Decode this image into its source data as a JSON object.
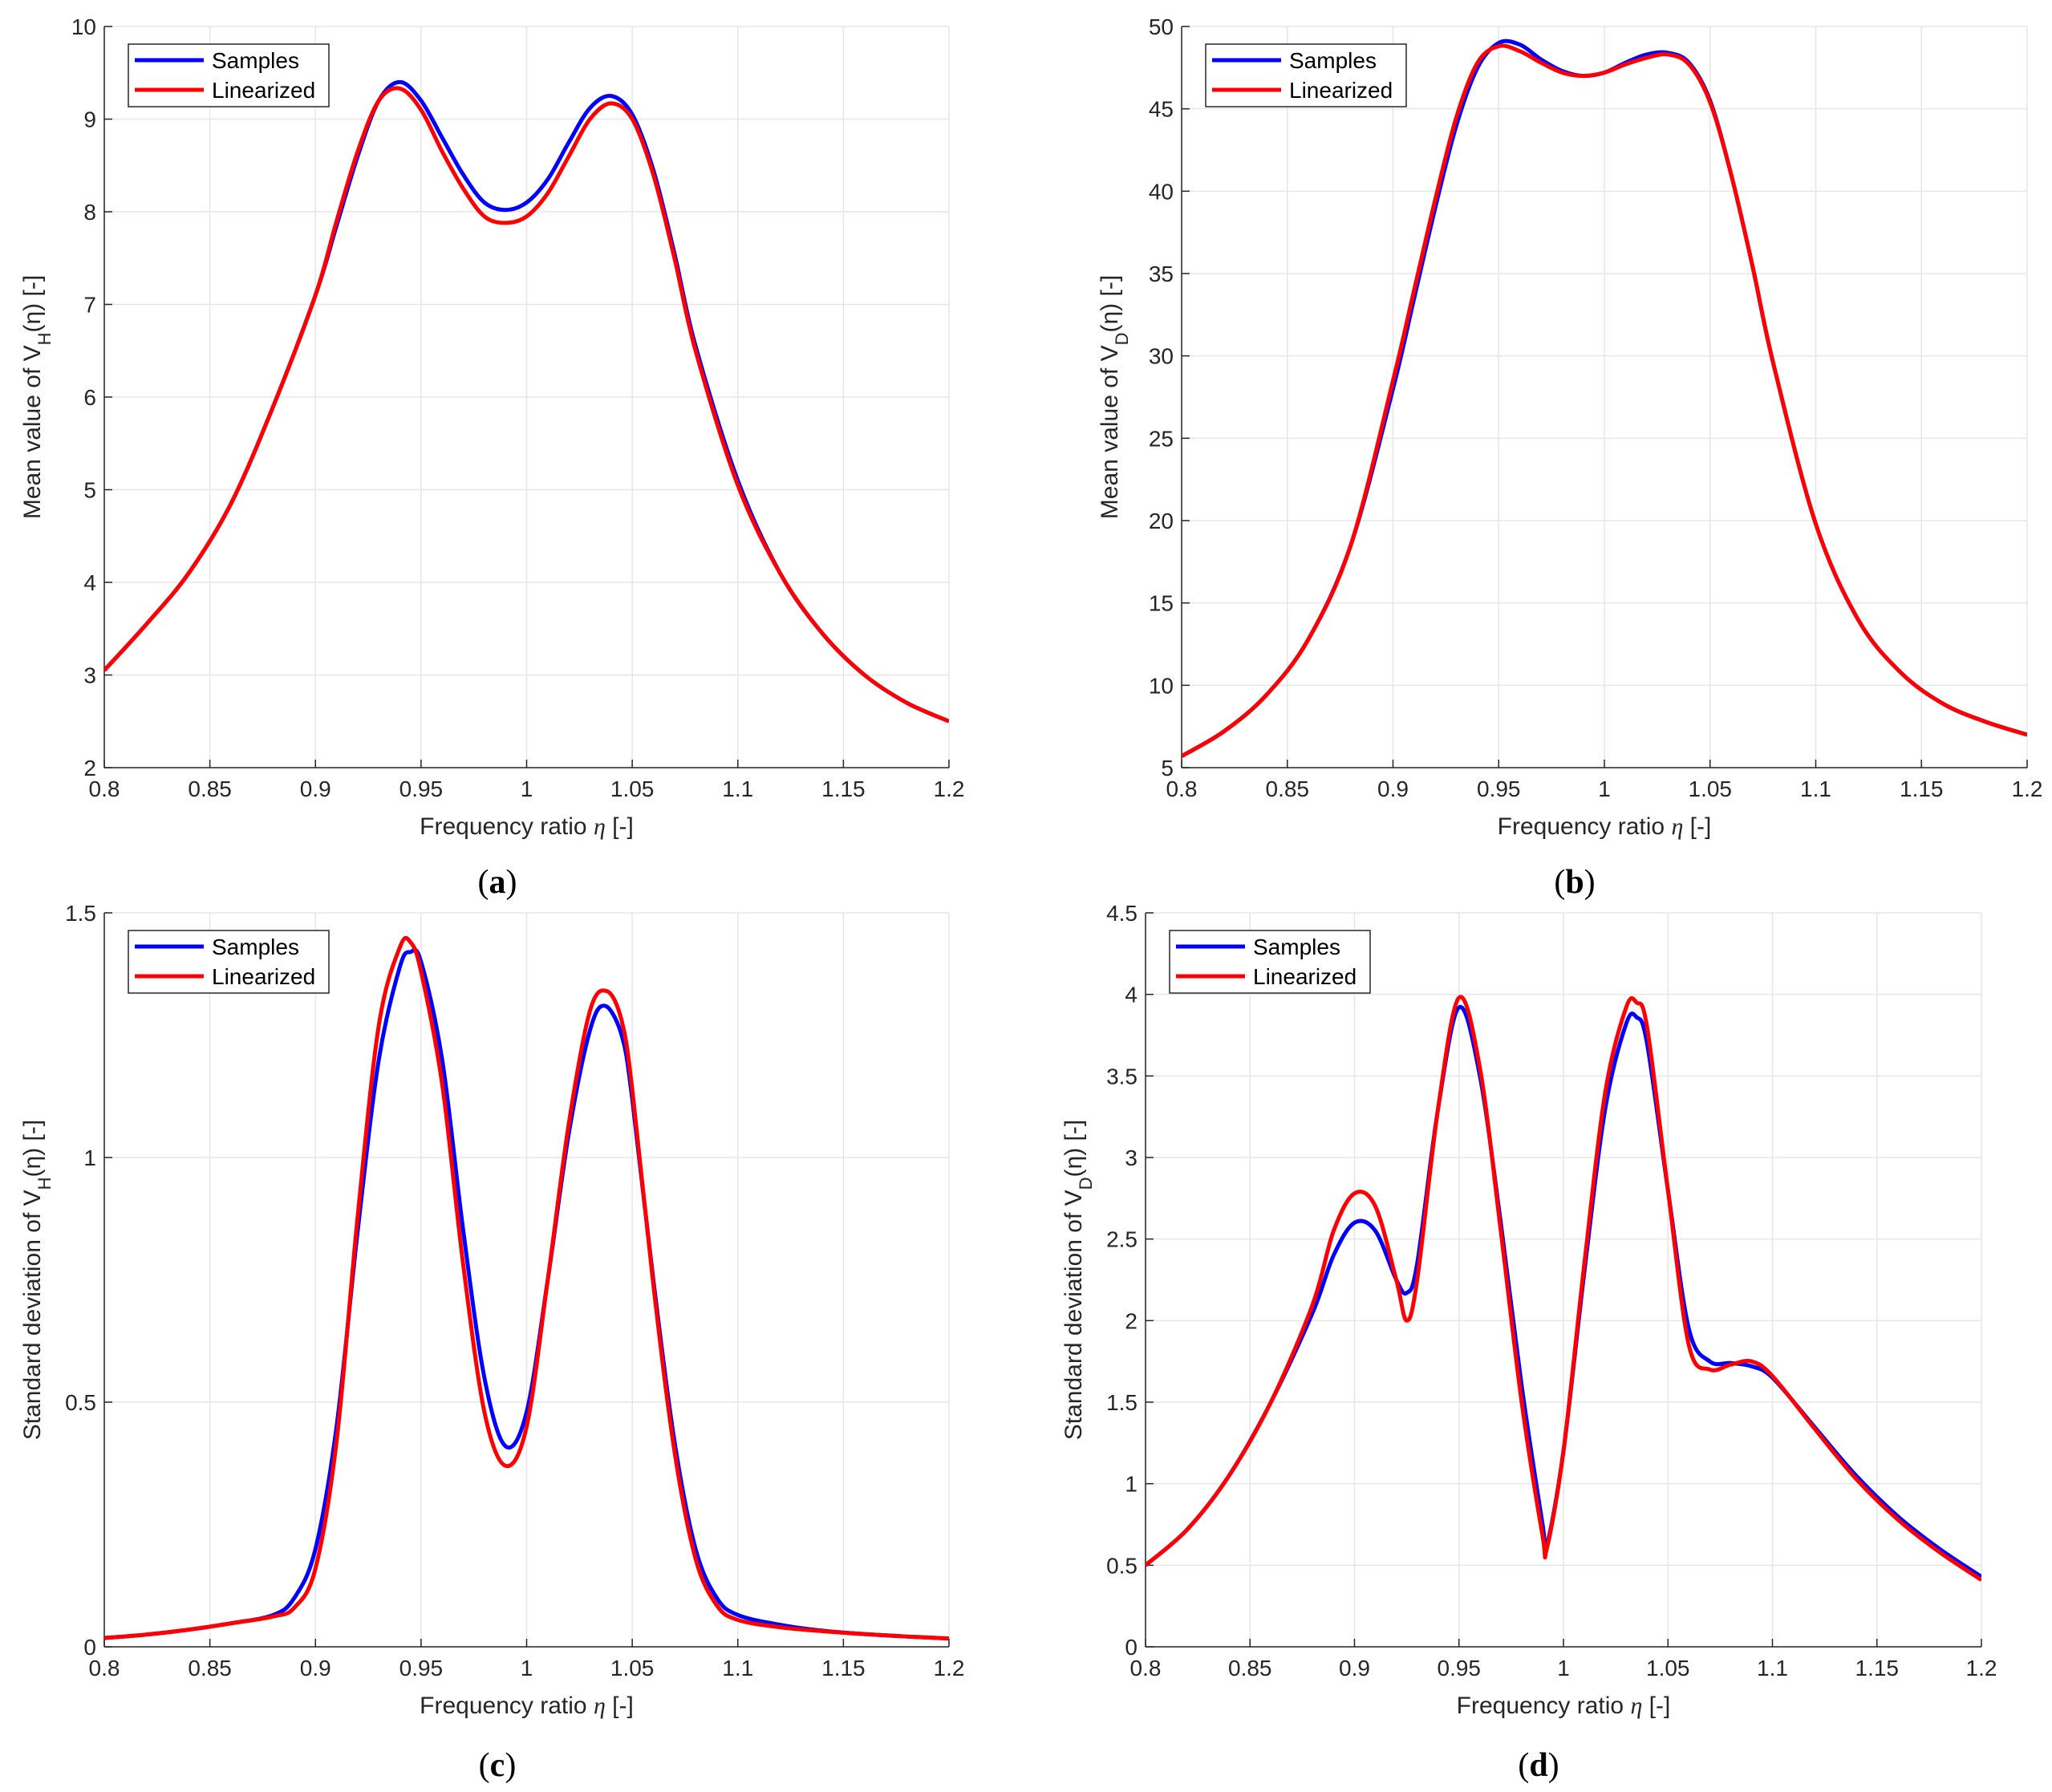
{
  "colors": {
    "samples": "#0000ff",
    "linearized": "#ff0000",
    "grid": "#e6e6e6",
    "axis": "#262626"
  },
  "legend": {
    "samples": "Samples",
    "linearized": "Linearized"
  },
  "chart_data": [
    {
      "id": "a",
      "type": "line",
      "caption": "a",
      "xlabel": "Frequency ratio",
      "xsym": "η",
      "xunit": "[-]",
      "ylabel_pre": "Mean value of V",
      "ylabel_sub": "H",
      "ylabel_post": "(η) [-]",
      "xlim": [
        0.8,
        1.2
      ],
      "ylim": [
        2,
        10
      ],
      "xticks": [
        0.8,
        0.85,
        0.9,
        0.95,
        1,
        1.05,
        1.1,
        1.15,
        1.2
      ],
      "xtick_labels": [
        "0.8",
        "0.85",
        "0.9",
        "0.95",
        "1",
        "1.05",
        "1.1",
        "1.15",
        "1.2"
      ],
      "yticks": [
        2,
        3,
        4,
        5,
        6,
        7,
        8,
        9,
        10
      ],
      "ytick_labels": [
        "2",
        "3",
        "4",
        "5",
        "6",
        "7",
        "8",
        "9",
        "10"
      ],
      "legend_position": "top-left",
      "series": [
        {
          "name": "Samples",
          "x": [
            0.8,
            0.82,
            0.84,
            0.86,
            0.88,
            0.9,
            0.91,
            0.92,
            0.93,
            0.94,
            0.95,
            0.96,
            0.97,
            0.98,
            0.99,
            1.0,
            1.01,
            1.02,
            1.03,
            1.04,
            1.05,
            1.06,
            1.07,
            1.08,
            1.1,
            1.12,
            1.14,
            1.16,
            1.18,
            1.2
          ],
          "y": [
            3.05,
            3.55,
            4.1,
            4.85,
            5.9,
            7.1,
            7.85,
            8.6,
            9.2,
            9.4,
            9.2,
            8.8,
            8.4,
            8.1,
            8.02,
            8.1,
            8.35,
            8.75,
            9.12,
            9.25,
            9.05,
            8.45,
            7.55,
            6.55,
            5.1,
            4.1,
            3.45,
            3.0,
            2.7,
            2.5
          ]
        },
        {
          "name": "Linearized",
          "x": [
            0.8,
            0.82,
            0.84,
            0.86,
            0.88,
            0.9,
            0.91,
            0.92,
            0.93,
            0.94,
            0.95,
            0.96,
            0.97,
            0.98,
            0.99,
            1.0,
            1.01,
            1.02,
            1.03,
            1.04,
            1.05,
            1.06,
            1.07,
            1.08,
            1.1,
            1.12,
            1.14,
            1.16,
            1.18,
            1.2
          ],
          "y": [
            3.05,
            3.55,
            4.1,
            4.85,
            5.9,
            7.1,
            7.9,
            8.65,
            9.2,
            9.33,
            9.1,
            8.65,
            8.25,
            7.95,
            7.88,
            7.95,
            8.2,
            8.6,
            9.0,
            9.17,
            9.0,
            8.4,
            7.5,
            6.5,
            5.05,
            4.1,
            3.45,
            3.0,
            2.7,
            2.5
          ]
        }
      ]
    },
    {
      "id": "b",
      "type": "line",
      "caption": "b",
      "xlabel": "Frequency ratio",
      "xsym": "η",
      "xunit": "[-]",
      "ylabel_pre": "Mean value of V",
      "ylabel_sub": "D",
      "ylabel_post": "(η) [-]",
      "xlim": [
        0.8,
        1.2
      ],
      "ylim": [
        5,
        50
      ],
      "xticks": [
        0.8,
        0.85,
        0.9,
        0.95,
        1,
        1.05,
        1.1,
        1.15,
        1.2
      ],
      "xtick_labels": [
        "0.8",
        "0.85",
        "0.9",
        "0.95",
        "1",
        "1.05",
        "1.1",
        "1.15",
        "1.2"
      ],
      "yticks": [
        5,
        10,
        15,
        20,
        25,
        30,
        35,
        40,
        45,
        50
      ],
      "ytick_labels": [
        "5",
        "10",
        "15",
        "20",
        "25",
        "30",
        "35",
        "40",
        "45",
        "50"
      ],
      "legend_position": "top-left",
      "series": [
        {
          "name": "Samples",
          "x": [
            0.8,
            0.82,
            0.84,
            0.86,
            0.88,
            0.9,
            0.91,
            0.92,
            0.93,
            0.94,
            0.95,
            0.96,
            0.97,
            0.98,
            0.99,
            1.0,
            1.01,
            1.02,
            1.03,
            1.04,
            1.05,
            1.06,
            1.07,
            1.08,
            1.1,
            1.12,
            1.14,
            1.16,
            1.18,
            1.2
          ],
          "y": [
            5.7,
            7.2,
            9.4,
            12.8,
            18.5,
            28.0,
            33.5,
            39.0,
            44.0,
            47.5,
            49.0,
            48.9,
            48.0,
            47.3,
            47.0,
            47.2,
            47.8,
            48.3,
            48.4,
            47.8,
            45.5,
            41.0,
            35.5,
            29.5,
            19.8,
            14.0,
            10.8,
            8.9,
            7.8,
            7.0
          ]
        },
        {
          "name": "Linearized",
          "x": [
            0.8,
            0.82,
            0.84,
            0.86,
            0.88,
            0.9,
            0.91,
            0.92,
            0.93,
            0.94,
            0.95,
            0.96,
            0.97,
            0.98,
            0.99,
            1.0,
            1.01,
            1.02,
            1.03,
            1.04,
            1.05,
            1.06,
            1.07,
            1.08,
            1.1,
            1.12,
            1.14,
            1.16,
            1.18,
            1.2
          ],
          "y": [
            5.7,
            7.2,
            9.4,
            12.8,
            18.5,
            28.5,
            34.0,
            39.5,
            44.5,
            47.8,
            48.8,
            48.5,
            47.8,
            47.2,
            47.0,
            47.2,
            47.7,
            48.1,
            48.3,
            47.7,
            45.4,
            41.0,
            35.5,
            29.5,
            19.8,
            14.0,
            10.8,
            8.9,
            7.8,
            7.0
          ]
        }
      ]
    },
    {
      "id": "c",
      "type": "line",
      "caption": "c",
      "xlabel": "Frequency ratio",
      "xsym": "η",
      "xunit": "[-]",
      "ylabel_pre": "Standard deviation of V",
      "ylabel_sub": "H",
      "ylabel_post": "(η) [-]",
      "xlim": [
        0.8,
        1.2
      ],
      "ylim": [
        0,
        1.5
      ],
      "xticks": [
        0.8,
        0.85,
        0.9,
        0.95,
        1,
        1.05,
        1.1,
        1.15,
        1.2
      ],
      "xtick_labels": [
        "0.8",
        "0.85",
        "0.9",
        "0.95",
        "1",
        "1.05",
        "1.1",
        "1.15",
        "1.2"
      ],
      "yticks": [
        0,
        0.5,
        1,
        1.5
      ],
      "ytick_labels": [
        "0",
        "0.5",
        "1",
        "1.5"
      ],
      "legend_position": "top-left",
      "series": [
        {
          "name": "Samples",
          "x": [
            0.8,
            0.82,
            0.84,
            0.86,
            0.88,
            0.89,
            0.9,
            0.91,
            0.92,
            0.93,
            0.94,
            0.945,
            0.95,
            0.96,
            0.97,
            0.98,
            0.99,
            1.0,
            1.01,
            1.02,
            1.03,
            1.037,
            1.045,
            1.05,
            1.06,
            1.07,
            1.08,
            1.09,
            1.1,
            1.12,
            1.14,
            1.16,
            1.18,
            1.2
          ],
          "y": [
            0.018,
            0.025,
            0.035,
            0.048,
            0.065,
            0.1,
            0.2,
            0.45,
            0.85,
            1.2,
            1.39,
            1.42,
            1.4,
            1.2,
            0.85,
            0.55,
            0.41,
            0.48,
            0.75,
            1.05,
            1.26,
            1.31,
            1.25,
            1.12,
            0.75,
            0.42,
            0.2,
            0.1,
            0.065,
            0.045,
            0.033,
            0.026,
            0.021,
            0.017
          ]
        },
        {
          "name": "Linearized",
          "x": [
            0.8,
            0.82,
            0.84,
            0.86,
            0.88,
            0.89,
            0.9,
            0.91,
            0.92,
            0.93,
            0.94,
            0.945,
            0.95,
            0.96,
            0.97,
            0.98,
            0.99,
            1.0,
            1.01,
            1.02,
            1.03,
            1.038,
            1.045,
            1.05,
            1.06,
            1.07,
            1.08,
            1.09,
            1.1,
            1.12,
            1.14,
            1.16,
            1.18,
            1.2
          ],
          "y": [
            0.018,
            0.025,
            0.035,
            0.048,
            0.062,
            0.08,
            0.16,
            0.42,
            0.88,
            1.27,
            1.43,
            1.44,
            1.38,
            1.15,
            0.78,
            0.48,
            0.37,
            0.45,
            0.75,
            1.07,
            1.3,
            1.34,
            1.28,
            1.14,
            0.74,
            0.4,
            0.18,
            0.085,
            0.055,
            0.04,
            0.032,
            0.026,
            0.021,
            0.017
          ]
        }
      ]
    },
    {
      "id": "d",
      "type": "line",
      "caption": "d",
      "xlabel": "Frequency ratio",
      "xsym": "η",
      "xunit": "[-]",
      "ylabel_pre": "Standard deviation of V",
      "ylabel_sub": "D",
      "ylabel_post": "(η) [-]",
      "xlim": [
        0.8,
        1.2
      ],
      "ylim": [
        0,
        4.5
      ],
      "xticks": [
        0.8,
        0.85,
        0.9,
        0.95,
        1,
        1.05,
        1.1,
        1.15,
        1.2
      ],
      "xtick_labels": [
        "0.8",
        "0.85",
        "0.9",
        "0.95",
        "1",
        "1.05",
        "1.1",
        "1.15",
        "1.2"
      ],
      "yticks": [
        0,
        0.5,
        1,
        1.5,
        2,
        2.5,
        3,
        3.5,
        4,
        4.5
      ],
      "ytick_labels": [
        "0",
        "0.5",
        "1",
        "1.5",
        "2",
        "2.5",
        "3",
        "3.5",
        "4",
        "4.5"
      ],
      "legend_position": "top-left",
      "series": [
        {
          "name": "Samples",
          "x": [
            0.8,
            0.82,
            0.84,
            0.86,
            0.88,
            0.89,
            0.9,
            0.91,
            0.92,
            0.925,
            0.93,
            0.94,
            0.95,
            0.96,
            0.97,
            0.98,
            0.99,
            0.992,
            1.0,
            1.01,
            1.02,
            1.03,
            1.035,
            1.04,
            1.05,
            1.06,
            1.07,
            1.08,
            1.09,
            1.1,
            1.12,
            1.14,
            1.16,
            1.18,
            1.2
          ],
          "y": [
            0.5,
            0.72,
            1.05,
            1.5,
            2.05,
            2.4,
            2.6,
            2.55,
            2.25,
            2.17,
            2.35,
            3.3,
            3.92,
            3.5,
            2.6,
            1.6,
            0.75,
            0.62,
            1.2,
            2.3,
            3.3,
            3.82,
            3.86,
            3.7,
            2.8,
            1.95,
            1.75,
            1.74,
            1.72,
            1.65,
            1.35,
            1.05,
            0.8,
            0.6,
            0.43
          ]
        },
        {
          "name": "Linearized",
          "x": [
            0.8,
            0.82,
            0.84,
            0.86,
            0.88,
            0.89,
            0.9,
            0.91,
            0.92,
            0.925,
            0.93,
            0.94,
            0.95,
            0.96,
            0.97,
            0.98,
            0.99,
            0.992,
            1.0,
            1.01,
            1.02,
            1.03,
            1.035,
            1.04,
            1.05,
            1.06,
            1.07,
            1.08,
            1.09,
            1.1,
            1.12,
            1.14,
            1.16,
            1.18,
            1.2
          ],
          "y": [
            0.5,
            0.72,
            1.05,
            1.5,
            2.1,
            2.55,
            2.78,
            2.7,
            2.25,
            2.0,
            2.25,
            3.3,
            3.98,
            3.55,
            2.55,
            1.5,
            0.68,
            0.6,
            1.2,
            2.35,
            3.4,
            3.92,
            3.95,
            3.8,
            2.8,
            1.85,
            1.7,
            1.73,
            1.75,
            1.66,
            1.34,
            1.03,
            0.78,
            0.58,
            0.41
          ]
        }
      ]
    }
  ]
}
